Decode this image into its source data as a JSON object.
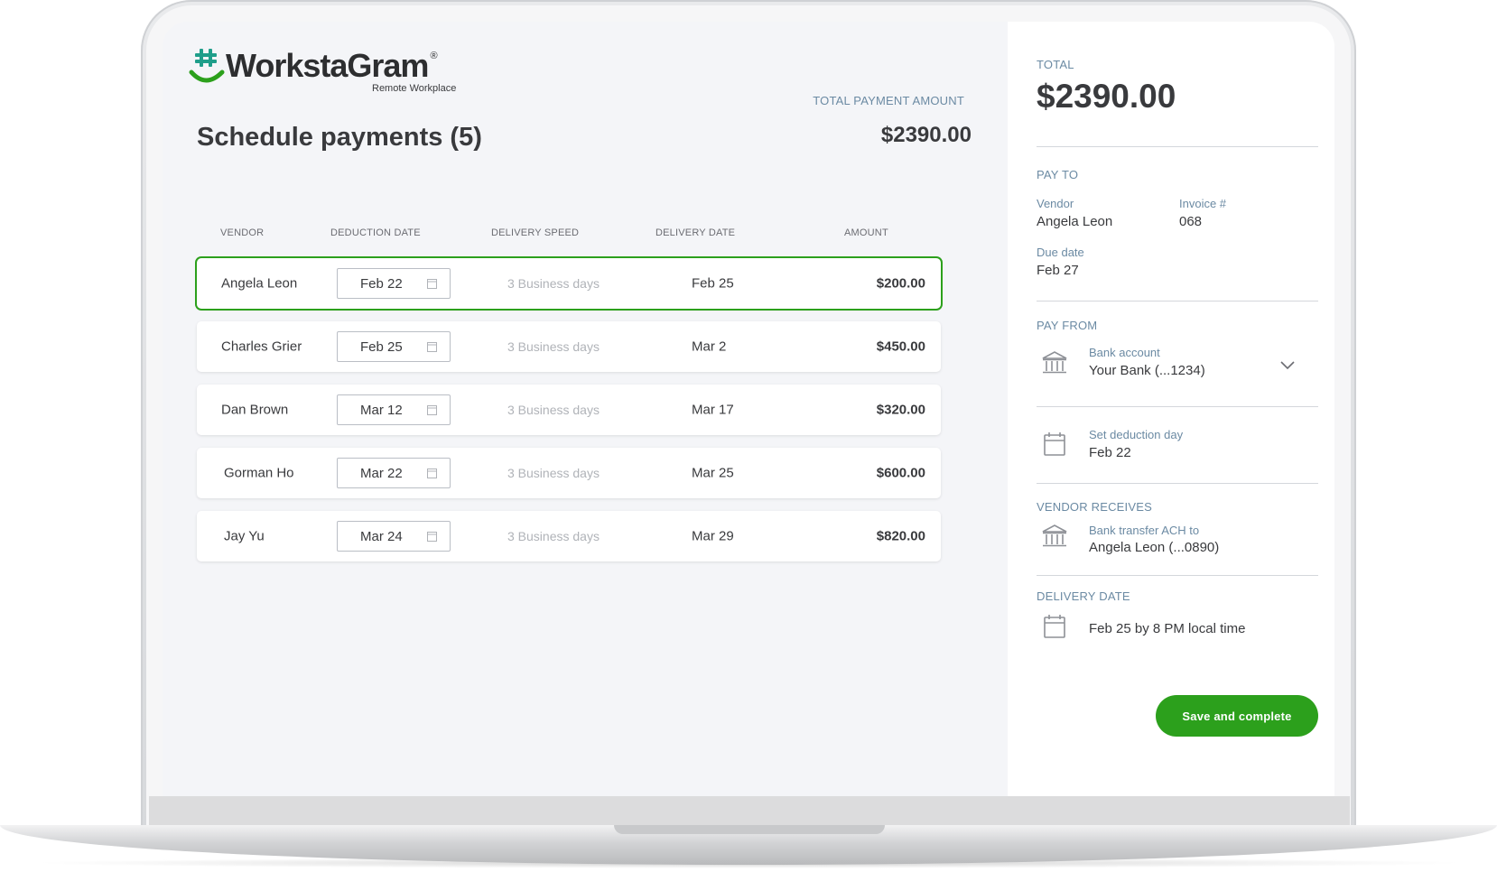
{
  "brand": {
    "name": "WorkstaGram",
    "registered": "®",
    "tagline": "Remote Workplace",
    "accent": "#2ca01c"
  },
  "header": {
    "title": "Schedule payments (5)",
    "total_label": "TOTAL PAYMENT AMOUNT",
    "total_value": "$2390.00"
  },
  "table": {
    "columns": [
      "VENDOR",
      "DEDUCTION DATE",
      "DELIVERY SPEED",
      "DELIVERY DATE",
      "AMOUNT"
    ],
    "rows": [
      {
        "vendor": "Angela Leon",
        "deduction_date": "Feb 22",
        "speed": "3 Business days",
        "delivery_date": "Feb 25",
        "amount": "$200.00",
        "selected": true
      },
      {
        "vendor": "Charles Grier",
        "deduction_date": "Feb 25",
        "speed": "3 Business days",
        "delivery_date": "Mar 2",
        "amount": "$450.00",
        "selected": false
      },
      {
        "vendor": "Dan Brown",
        "deduction_date": "Mar 12",
        "speed": "3 Business days",
        "delivery_date": "Mar 17",
        "amount": "$320.00",
        "selected": false
      },
      {
        "vendor": "Gorman Ho",
        "deduction_date": "Mar 22",
        "speed": "3 Business days",
        "delivery_date": "Mar 25",
        "amount": "$600.00",
        "selected": false
      },
      {
        "vendor": "Jay Yu",
        "deduction_date": "Mar 24",
        "speed": "3 Business days",
        "delivery_date": "Mar 29",
        "amount": "$820.00",
        "selected": false
      }
    ],
    "icons": {
      "date_input": "calendar-icon"
    }
  },
  "panel": {
    "total_label": "TOTAL",
    "total_value": "$2390.00",
    "pay_to": {
      "label": "PAY TO",
      "vendor_label": "Vendor",
      "vendor": "Angela Leon",
      "invoice_label": "Invoice #",
      "invoice": "068",
      "due_label": "Due date",
      "due": "Feb 27"
    },
    "pay_from": {
      "label": "PAY FROM",
      "account_label": "Bank account",
      "account": "Your Bank (...1234)",
      "deduction_label": "Set deduction day",
      "deduction": "Feb 22",
      "icons": {
        "account": "bank-icon",
        "dropdown": "chevron-down-icon",
        "deduction": "calendar-icon"
      }
    },
    "vendor_receives": {
      "label": "VENDOR RECEIVES",
      "method_label": "Bank transfer ACH to",
      "method": "Angela Leon (...0890)",
      "icon": "bank-icon"
    },
    "delivery": {
      "label": "DELIVERY DATE",
      "value": "Feb 25 by 8 PM local time",
      "icon": "calendar-icon"
    },
    "save_button": "Save and complete"
  }
}
